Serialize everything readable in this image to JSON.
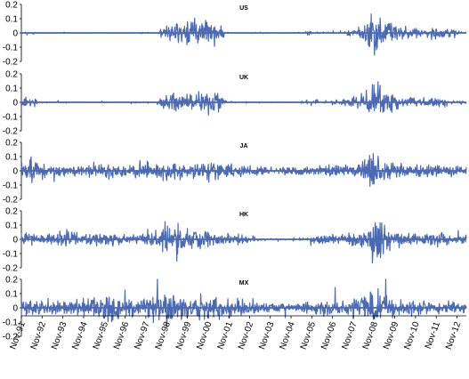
{
  "chart_data": [
    {
      "type": "line",
      "title": "US",
      "ylim": [
        -0.2,
        0.2
      ],
      "yticks": [
        "0.2",
        "0.1",
        "0",
        "-0.1",
        "-0.2"
      ],
      "series": [
        {
          "color": "#4a6ab5",
          "zero_baseline": true,
          "activity_profile": [
            0.002,
            0.004,
            0.0,
            0.0,
            0.002,
            0.0,
            0.0,
            0.0,
            0.002,
            0.0,
            0.0,
            0.0,
            0.004,
            0.001,
            0.018,
            0.022,
            0.025,
            0.028,
            0.024,
            0.018,
            0.002,
            0.0,
            0.002,
            0.003,
            0.002,
            0.001,
            0.002,
            0.004,
            0.006,
            0.002,
            0.004,
            0.005,
            0.008,
            0.012,
            0.045,
            0.035,
            0.02,
            0.01,
            0.012,
            0.006,
            0.012,
            0.01,
            0.008,
            0.004
          ]
        }
      ]
    },
    {
      "type": "line",
      "title": "UK",
      "ylim": [
        -0.2,
        0.2
      ],
      "yticks": [
        "0.2",
        "0.1",
        "0",
        "-0.1",
        "-0.2"
      ],
      "series": [
        {
          "color": "#4a6ab5",
          "zero_baseline": true,
          "activity_profile": [
            0.01,
            0.01,
            0.004,
            0.002,
            0.004,
            0.0,
            0.0,
            0.002,
            0.004,
            0.002,
            0.002,
            0.003,
            0.004,
            0.003,
            0.02,
            0.018,
            0.014,
            0.02,
            0.025,
            0.02,
            0.004,
            0.003,
            0.002,
            0.002,
            0.002,
            0.001,
            0.002,
            0.003,
            0.006,
            0.005,
            0.006,
            0.008,
            0.01,
            0.018,
            0.04,
            0.03,
            0.018,
            0.01,
            0.01,
            0.008,
            0.01,
            0.008,
            0.006,
            0.004
          ]
        }
      ]
    },
    {
      "type": "line",
      "title": "JA",
      "ylim": [
        -0.2,
        0.2
      ],
      "yticks": [
        "0.2",
        "0.1",
        "0",
        "-0.1",
        "-0.2"
      ],
      "series": [
        {
          "color": "#4a6ab5",
          "zero_baseline": true,
          "activity_profile": [
            0.02,
            0.025,
            0.015,
            0.012,
            0.01,
            0.012,
            0.008,
            0.014,
            0.016,
            0.012,
            0.01,
            0.01,
            0.016,
            0.018,
            0.02,
            0.018,
            0.016,
            0.016,
            0.018,
            0.016,
            0.012,
            0.012,
            0.01,
            0.012,
            0.008,
            0.008,
            0.01,
            0.008,
            0.01,
            0.01,
            0.014,
            0.01,
            0.01,
            0.02,
            0.04,
            0.03,
            0.016,
            0.012,
            0.014,
            0.012,
            0.014,
            0.012,
            0.01,
            0.01
          ]
        }
      ]
    },
    {
      "type": "line",
      "title": "HK",
      "ylim": [
        -0.2,
        0.2
      ],
      "yticks": [
        "0.2",
        "0.1",
        "0",
        "-0.1",
        "-0.2"
      ],
      "series": [
        {
          "color": "#4a6ab5",
          "zero_baseline": true,
          "activity_profile": [
            0.014,
            0.012,
            0.01,
            0.01,
            0.018,
            0.016,
            0.012,
            0.012,
            0.014,
            0.012,
            0.008,
            0.01,
            0.016,
            0.02,
            0.03,
            0.028,
            0.022,
            0.018,
            0.016,
            0.014,
            0.012,
            0.01,
            0.008,
            0.006,
            0.004,
            0.004,
            0.004,
            0.006,
            0.008,
            0.01,
            0.012,
            0.01,
            0.014,
            0.02,
            0.045,
            0.035,
            0.018,
            0.012,
            0.012,
            0.01,
            0.014,
            0.012,
            0.01,
            0.008
          ]
        }
      ]
    },
    {
      "type": "line",
      "title": "MX",
      "ylim": [
        -0.2,
        0.2
      ],
      "yticks": [
        "0.2",
        "0.1",
        "0",
        "-0.1",
        "-0.2"
      ],
      "series": [
        {
          "color": "#4a6ab5",
          "zero_baseline": true,
          "activity_profile": [
            0.018,
            0.018,
            0.016,
            0.016,
            0.014,
            0.018,
            0.02,
            0.022,
            0.024,
            0.022,
            0.018,
            0.016,
            0.022,
            0.03,
            0.035,
            0.03,
            0.028,
            0.025,
            0.022,
            0.022,
            0.02,
            0.016,
            0.014,
            0.012,
            0.01,
            0.01,
            0.01,
            0.012,
            0.012,
            0.014,
            0.016,
            0.016,
            0.018,
            0.022,
            0.035,
            0.03,
            0.02,
            0.016,
            0.014,
            0.012,
            0.014,
            0.014,
            0.012,
            0.01
          ]
        }
      ]
    }
  ],
  "x_axis": {
    "categories": [
      "Nov-91",
      "Nov-92",
      "Nov-93",
      "Nov-94",
      "Nov-95",
      "Nov-96",
      "Nov-97",
      "Nov-98",
      "Nov-99",
      "Nov-00",
      "Nov-01",
      "Nov-02",
      "Nov-03",
      "Nov-04",
      "Nov-05",
      "Nov-06",
      "Nov-07",
      "Nov-08",
      "Nov-09",
      "Nov-10",
      "Nov-11",
      "Nov-12"
    ],
    "label_rotation_deg": -70
  }
}
